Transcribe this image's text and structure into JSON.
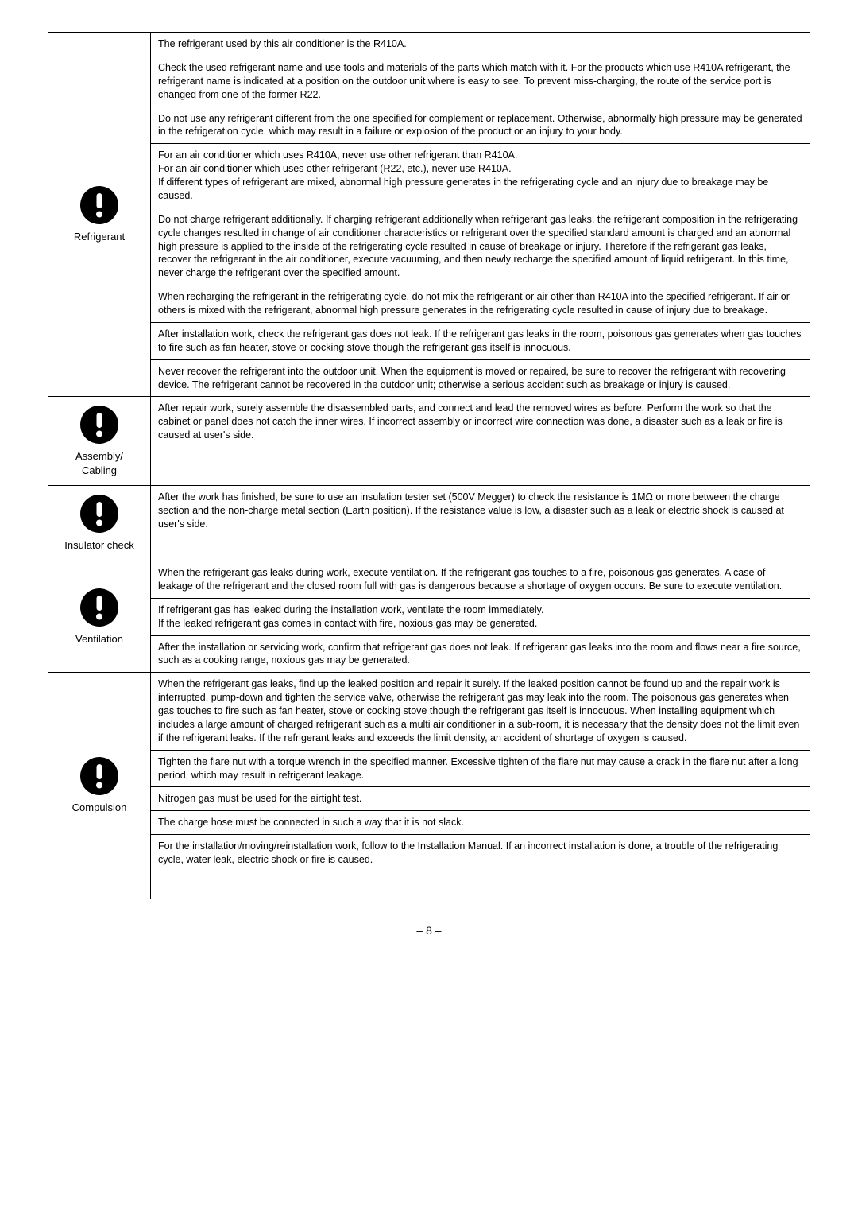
{
  "sections": [
    {
      "label": "Refrigerant",
      "rows": [
        "The refrigerant used by this air conditioner is the R410A.",
        "Check the used refrigerant name and use tools and materials of the parts which match with it. For the products which use R410A refrigerant, the refrigerant name is indicated at a position on the outdoor unit where is easy to see. To prevent miss-charging, the route of the service port is changed from one of the former R22.",
        "Do not use any refrigerant different from the one specified for complement or replacement. Otherwise, abnormally high pressure may be generated in the refrigeration cycle, which may result in a failure or explosion of the product or an injury to your body.",
        "For an air conditioner which uses R410A, never use other refrigerant than R410A.\nFor an air conditioner which uses other refrigerant (R22, etc.), never use R410A.\nIf different types of refrigerant are mixed, abnormal high pressure generates in the refrigerating cycle and an injury due to breakage may be caused.",
        "Do not charge refrigerant additionally. If charging refrigerant additionally when refrigerant gas leaks, the refrigerant composition in the refrigerating cycle changes resulted in change of air conditioner characteristics or refrigerant over the specified standard amount is charged and an abnormal high pressure is applied to the inside of the refrigerating cycle resulted in cause of breakage or injury. Therefore if the refrigerant gas leaks, recover the refrigerant in the air conditioner, execute vacuuming, and then newly recharge the specified amount of liquid refrigerant. In this time, never charge the refrigerant over the specified amount.",
        "When recharging the refrigerant in the refrigerating cycle, do not mix the refrigerant or air other than R410A into the specified refrigerant. If air or others is mixed with the refrigerant, abnormal high pressure generates in the refrigerating cycle resulted in cause of injury due to breakage.",
        "After installation work, check the refrigerant gas does not leak. If the refrigerant gas leaks in the room, poisonous gas generates when gas touches to fire such as fan heater, stove or cocking stove though the refrigerant gas itself is innocuous.",
        "Never recover the refrigerant into the outdoor unit. When the equipment is moved or repaired, be sure to recover the refrigerant with recovering device. The refrigerant cannot be recovered in the outdoor unit; otherwise a serious accident such as breakage or injury is caused."
      ]
    },
    {
      "label": "Assembly/\nCabling",
      "rows": [
        "After repair work, surely assemble the disassembled parts, and connect and lead the removed wires as before. Perform the work so that the cabinet or panel does not catch the inner wires. If incorrect assembly or incorrect wire connection was done, a disaster such as a leak or fire is caused at user's side."
      ]
    },
    {
      "label": "Insulator check",
      "rows": [
        "After the work has finished, be sure to use an insulation tester set (500V Megger) to check the resistance is 1MΩ or more between the charge section and the non-charge metal section (Earth position). If the resistance value is low, a disaster such as a leak or electric shock is caused at user's side."
      ]
    },
    {
      "label": "Ventilation",
      "rows": [
        "When the refrigerant gas leaks during work, execute ventilation. If the refrigerant gas touches to a fire, poisonous gas generates. A case of leakage of the refrigerant and the closed room full with gas is dangerous because a shortage of oxygen occurs. Be sure to execute ventilation.",
        "If refrigerant gas has leaked during the installation work, ventilate the room immediately.\nIf the leaked refrigerant gas comes in contact with fire, noxious gas may be generated.",
        "After the installation or servicing work, confirm that refrigerant gas does not leak. If refrigerant gas leaks into the room and flows near a fire source, such as a cooking range, noxious gas may be generated."
      ]
    },
    {
      "label": "Compulsion",
      "rows": [
        "When the refrigerant gas leaks, find up the leaked position and repair it surely. If the leaked position cannot be found up and the repair work is interrupted, pump-down and tighten the service valve, otherwise the refrigerant gas may leak into the room. The poisonous gas generates when gas touches to fire such as fan heater, stove or cocking stove though the refrigerant gas itself is innocuous. When installing equipment which includes a large amount of charged refrigerant such as a multi air conditioner in a sub-room, it is necessary that the density does not the limit even if the refrigerant leaks. If the refrigerant leaks and exceeds the limit density, an accident of shortage of oxygen is caused.",
        "Tighten the flare nut with a torque wrench in the specified manner. Excessive tighten of the flare nut may cause a crack in the flare nut after a long period, which may result in refrigerant leakage.",
        "Nitrogen gas must be used for the airtight test.",
        "The charge hose must be connected in such a way that it is not slack.",
        "For the installation/moving/reinstallation work, follow to the Installation Manual. If an incorrect installation is done, a trouble of the refrigerating cycle, water leak, electric shock or fire is caused.\n\n\n"
      ]
    }
  ],
  "pageNumber": "– 8 –"
}
